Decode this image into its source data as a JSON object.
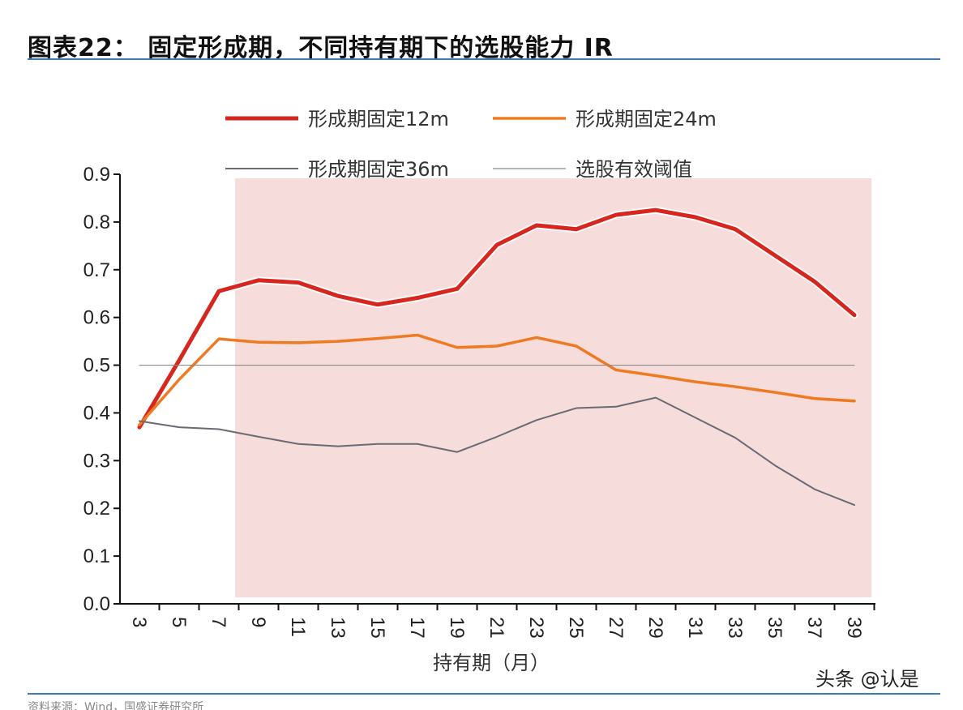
{
  "header": {
    "title": "图表22： 固定形成期，不同持有期下的选股能力 IR"
  },
  "footer": {
    "watermark": "头条 @认是",
    "source": "资料来源：Wind，国盛证券研究所"
  },
  "colors": {
    "series_12m": "#d7261e",
    "series_24m": "#ee7a22",
    "series_36m": "#6a6a72",
    "series_ref": "#8a8a8a",
    "shade": "#f7dcdc",
    "rule": "#3f79b5"
  },
  "chart_data": {
    "type": "line",
    "title": "",
    "xlabel": "持有期（月）",
    "ylabel": "",
    "ylim": [
      0,
      0.9
    ],
    "y_ticks": [
      "0.0",
      "0.1",
      "0.2",
      "0.3",
      "0.4",
      "0.5",
      "0.6",
      "0.7",
      "0.8",
      "0.9"
    ],
    "grid": false,
    "legend_position": "top",
    "categories": [
      "3",
      "5",
      "7",
      "9",
      "11",
      "13",
      "15",
      "17",
      "19",
      "21",
      "23",
      "25",
      "27",
      "29",
      "31",
      "33",
      "35",
      "37",
      "39"
    ],
    "shaded_region": {
      "from": "8",
      "to": "39"
    },
    "series": [
      {
        "name": "形成期固定12m",
        "color_key": "series_12m",
        "values": [
          0.37,
          0.51,
          0.655,
          0.678,
          0.673,
          0.645,
          0.627,
          0.641,
          0.66,
          0.752,
          0.793,
          0.785,
          0.815,
          0.825,
          0.81,
          0.785,
          0.73,
          0.675,
          0.605
        ]
      },
      {
        "name": "形成期固定24m",
        "color_key": "series_24m",
        "values": [
          0.375,
          0.47,
          0.555,
          0.548,
          0.547,
          0.55,
          0.556,
          0.563,
          0.537,
          0.54,
          0.558,
          0.54,
          0.49,
          0.478,
          0.465,
          0.455,
          0.443,
          0.43,
          0.425
        ]
      },
      {
        "name": "形成期固定36m",
        "color_key": "series_36m",
        "values": [
          0.383,
          0.37,
          0.366,
          0.35,
          0.335,
          0.33,
          0.335,
          0.335,
          0.318,
          0.35,
          0.385,
          0.41,
          0.413,
          0.432,
          0.39,
          0.348,
          0.29,
          0.24,
          0.207
        ]
      },
      {
        "name": "选股有效阈值",
        "color_key": "series_ref",
        "values": [
          0.5,
          0.5,
          0.5,
          0.5,
          0.5,
          0.5,
          0.5,
          0.5,
          0.5,
          0.5,
          0.5,
          0.5,
          0.5,
          0.5,
          0.5,
          0.5,
          0.5,
          0.5,
          0.5
        ]
      }
    ]
  }
}
